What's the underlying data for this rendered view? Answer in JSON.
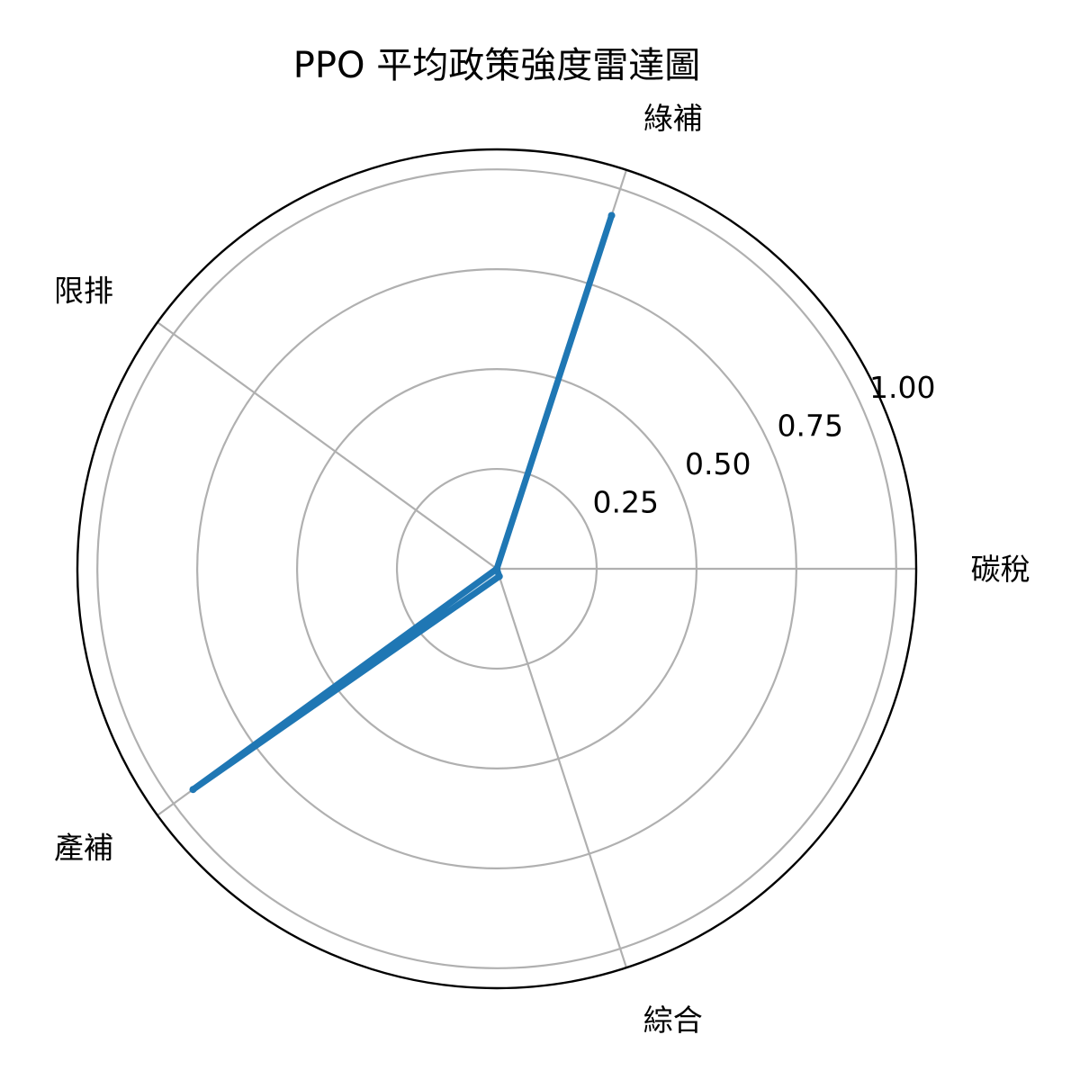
{
  "chart_data": {
    "type": "radar",
    "title": "PPO 平均政策強度雷達圖",
    "categories": [
      "碳稅",
      "綠補",
      "限排",
      "產補",
      "綜合"
    ],
    "series": [
      {
        "values": [
          0.0,
          0.93,
          0.0,
          0.94,
          0.02
        ]
      }
    ],
    "rlim": [
      0,
      1.05
    ],
    "r_ticks": [
      0.25,
      0.5,
      0.75,
      1.0
    ],
    "r_tick_labels": [
      "0.25",
      "0.50",
      "0.75",
      "1.00"
    ],
    "grid": true,
    "line_color": "#1f77b4",
    "fill_color": "#1f77b4"
  }
}
